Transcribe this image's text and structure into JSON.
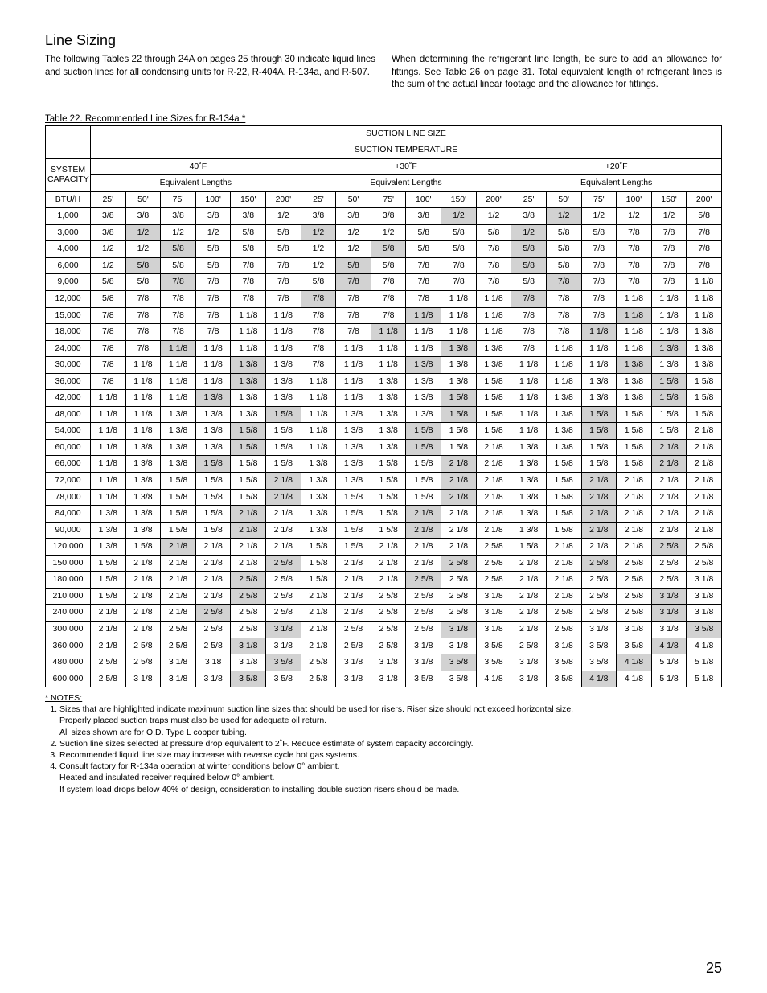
{
  "page": {
    "section_title": "Line Sizing",
    "intro_left": "The following Tables 22 through 24A on pages 25 through 30 indicate liquid lines and suction lines for all condensing units for R-22, R-404A, R-134a, and R-507.",
    "intro_right": "When determining the refrigerant line length, be sure to add an allowance for fittings. See Table 26 on page 31. Total equivalent length of refrigerant lines is the sum of the actual linear footage and the allowance for fittings.",
    "table_caption": "Table 22.  Recommended Line Sizes for R-134a *",
    "headers": {
      "suction_line_size": "SUCTION LINE SIZE",
      "suction_temperature": "SUCTION TEMPERATURE",
      "system_capacity_line1": "SYSTEM",
      "system_capacity_line2": "CAPACITY",
      "btuh": "BTU/H",
      "temps": [
        "+40˚F",
        "+30˚F",
        "+20˚F"
      ],
      "equiv_lengths": "Equivalent Lengths",
      "lengths": [
        "25'",
        "50'",
        "75'",
        "100'",
        "150'",
        "200'"
      ]
    },
    "highlight_color": "#d2d2d2",
    "rows": [
      {
        "cap": "1,000",
        "cells": [
          "3/8",
          "3/8",
          "3/8",
          "3/8",
          "3/8",
          "1/2",
          "3/8",
          "3/8",
          "3/8",
          "3/8",
          "1/2",
          "1/2",
          "3/8",
          "1/2",
          "1/2",
          "1/2",
          "1/2",
          "5/8"
        ],
        "hi": [
          10,
          13
        ]
      },
      {
        "cap": "3,000",
        "cells": [
          "3/8",
          "1/2",
          "1/2",
          "1/2",
          "5/8",
          "5/8",
          "1/2",
          "1/2",
          "1/2",
          "5/8",
          "5/8",
          "5/8",
          "1/2",
          "5/8",
          "5/8",
          "7/8",
          "7/8",
          "7/8"
        ],
        "hi": [
          1,
          6,
          12
        ]
      },
      {
        "cap": "4,000",
        "cells": [
          "1/2",
          "1/2",
          "5/8",
          "5/8",
          "5/8",
          "5/8",
          "1/2",
          "1/2",
          "5/8",
          "5/8",
          "5/8",
          "7/8",
          "5/8",
          "5/8",
          "7/8",
          "7/8",
          "7/8",
          "7/8"
        ],
        "hi": [
          2,
          8,
          12
        ]
      },
      {
        "cap": "6,000",
        "cells": [
          "1/2",
          "5/8",
          "5/8",
          "5/8",
          "7/8",
          "7/8",
          "1/2",
          "5/8",
          "5/8",
          "7/8",
          "7/8",
          "7/8",
          "5/8",
          "5/8",
          "7/8",
          "7/8",
          "7/8",
          "7/8"
        ],
        "hi": [
          1,
          7,
          12
        ]
      },
      {
        "cap": "9,000",
        "cells": [
          "5/8",
          "5/8",
          "7/8",
          "7/8",
          "7/8",
          "7/8",
          "5/8",
          "7/8",
          "7/8",
          "7/8",
          "7/8",
          "7/8",
          "5/8",
          "7/8",
          "7/8",
          "7/8",
          "7/8",
          "1 1/8"
        ],
        "hi": [
          2,
          7,
          13
        ]
      },
      {
        "cap": "12,000",
        "cells": [
          "5/8",
          "7/8",
          "7/8",
          "7/8",
          "7/8",
          "7/8",
          "7/8",
          "7/8",
          "7/8",
          "7/8",
          "1 1/8",
          "1 1/8",
          "7/8",
          "7/8",
          "7/8",
          "1 1/8",
          "1 1/8",
          "1 1/8"
        ],
        "hi": [
          6,
          12
        ]
      },
      {
        "cap": "15,000",
        "cells": [
          "7/8",
          "7/8",
          "7/8",
          "7/8",
          "1 1/8",
          "1 1/8",
          "7/8",
          "7/8",
          "7/8",
          "1 1/8",
          "1 1/8",
          "1 1/8",
          "7/8",
          "7/8",
          "7/8",
          "1 1/8",
          "1 1/8",
          "1 1/8"
        ],
        "hi": [
          9,
          15
        ]
      },
      {
        "cap": "18,000",
        "cells": [
          "7/8",
          "7/8",
          "7/8",
          "7/8",
          "1 1/8",
          "1 1/8",
          "7/8",
          "7/8",
          "1 1/8",
          "1 1/8",
          "1 1/8",
          "1 1/8",
          "7/8",
          "7/8",
          "1 1/8",
          "1 1/8",
          "1 1/8",
          "1 3/8"
        ],
        "hi": [
          8,
          14
        ]
      },
      {
        "cap": "24,000",
        "cells": [
          "7/8",
          "7/8",
          "1 1/8",
          "1 1/8",
          "1 1/8",
          "1 1/8",
          "7/8",
          "1 1/8",
          "1 1/8",
          "1 1/8",
          "1 3/8",
          "1 3/8",
          "7/8",
          "1 1/8",
          "1 1/8",
          "1 1/8",
          "1 3/8",
          "1 3/8"
        ],
        "hi": [
          2,
          10,
          16
        ]
      },
      {
        "cap": "30,000",
        "cells": [
          "7/8",
          "1 1/8",
          "1 1/8",
          "1 1/8",
          "1 3/8",
          "1 3/8",
          "7/8",
          "1 1/8",
          "1 1/8",
          "1 3/8",
          "1 3/8",
          "1 3/8",
          "1 1/8",
          "1 1/8",
          "1 1/8",
          "1 3/8",
          "1 3/8",
          "1 3/8"
        ],
        "hi": [
          4,
          9,
          15
        ]
      },
      {
        "cap": "36,000",
        "cells": [
          "7/8",
          "1 1/8",
          "1 1/8",
          "1 1/8",
          "1 3/8",
          "1 3/8",
          "1 1/8",
          "1 1/8",
          "1 3/8",
          "1 3/8",
          "1 3/8",
          "1 5/8",
          "1 1/8",
          "1 1/8",
          "1 3/8",
          "1 3/8",
          "1 5/8",
          "1 5/8"
        ],
        "hi": [
          4,
          16
        ]
      },
      {
        "cap": "42,000",
        "cells": [
          "1 1/8",
          "1 1/8",
          "1 1/8",
          "1 3/8",
          "1 3/8",
          "1 3/8",
          "1 1/8",
          "1 1/8",
          "1 3/8",
          "1 3/8",
          "1 5/8",
          "1 5/8",
          "1 1/8",
          "1 3/8",
          "1 3/8",
          "1 3/8",
          "1 5/8",
          "1 5/8"
        ],
        "hi": [
          3,
          10,
          16
        ]
      },
      {
        "cap": "48,000",
        "cells": [
          "1 1/8",
          "1 1/8",
          "1 3/8",
          "1 3/8",
          "1 3/8",
          "1 5/8",
          "1 1/8",
          "1 3/8",
          "1 3/8",
          "1 3/8",
          "1 5/8",
          "1 5/8",
          "1 1/8",
          "1 3/8",
          "1 5/8",
          "1 5/8",
          "1 5/8",
          "1 5/8"
        ],
        "hi": [
          5,
          10,
          14
        ]
      },
      {
        "cap": "54,000",
        "cells": [
          "1 1/8",
          "1 1/8",
          "1 3/8",
          "1 3/8",
          "1 5/8",
          "1 5/8",
          "1 1/8",
          "1 3/8",
          "1 3/8",
          "1 5/8",
          "1 5/8",
          "1 5/8",
          "1 1/8",
          "1 3/8",
          "1 5/8",
          "1 5/8",
          "1 5/8",
          "2 1/8"
        ],
        "hi": [
          4,
          9,
          14
        ]
      },
      {
        "cap": "60,000",
        "cells": [
          "1 1/8",
          "1 3/8",
          "1 3/8",
          "1 3/8",
          "1 5/8",
          "1 5/8",
          "1 1/8",
          "1 3/8",
          "1 3/8",
          "1 5/8",
          "1 5/8",
          "2 1/8",
          "1 3/8",
          "1 3/8",
          "1 5/8",
          "1 5/8",
          "2 1/8",
          "2 1/8"
        ],
        "hi": [
          4,
          9,
          16
        ]
      },
      {
        "cap": "66,000",
        "cells": [
          "1 1/8",
          "1 3/8",
          "1 3/8",
          "1 5/8",
          "1 5/8",
          "1 5/8",
          "1 3/8",
          "1 3/8",
          "1 5/8",
          "1 5/8",
          "2 1/8",
          "2 1/8",
          "1 3/8",
          "1 5/8",
          "1 5/8",
          "1 5/8",
          "2 1/8",
          "2 1/8"
        ],
        "hi": [
          3,
          10,
          16
        ]
      },
      {
        "cap": "72,000",
        "cells": [
          "1 1/8",
          "1 3/8",
          "1 5/8",
          "1 5/8",
          "1 5/8",
          "2 1/8",
          "1 3/8",
          "1 3/8",
          "1 5/8",
          "1 5/8",
          "2 1/8",
          "2 1/8",
          "1 3/8",
          "1 5/8",
          "2 1/8",
          "2 1/8",
          "2 1/8",
          "2 1/8"
        ],
        "hi": [
          5,
          10,
          14
        ]
      },
      {
        "cap": "78,000",
        "cells": [
          "1 1/8",
          "1 3/8",
          "1 5/8",
          "1 5/8",
          "1 5/8",
          "2 1/8",
          "1 3/8",
          "1 5/8",
          "1 5/8",
          "1 5/8",
          "2 1/8",
          "2 1/8",
          "1 3/8",
          "1 5/8",
          "2 1/8",
          "2 1/8",
          "2 1/8",
          "2 1/8"
        ],
        "hi": [
          5,
          10,
          14
        ]
      },
      {
        "cap": "84,000",
        "cells": [
          "1 3/8",
          "1 3/8",
          "1 5/8",
          "1 5/8",
          "2 1/8",
          "2 1/8",
          "1 3/8",
          "1 5/8",
          "1 5/8",
          "2 1/8",
          "2 1/8",
          "2 1/8",
          "1 3/8",
          "1 5/8",
          "2 1/8",
          "2 1/8",
          "2 1/8",
          "2 1/8"
        ],
        "hi": [
          4,
          9,
          14
        ]
      },
      {
        "cap": "90,000",
        "cells": [
          "1 3/8",
          "1 3/8",
          "1 5/8",
          "1 5/8",
          "2 1/8",
          "2 1/8",
          "1 3/8",
          "1 5/8",
          "1 5/8",
          "2 1/8",
          "2 1/8",
          "2 1/8",
          "1 3/8",
          "1 5/8",
          "2 1/8",
          "2 1/8",
          "2 1/8",
          "2 1/8"
        ],
        "hi": [
          4,
          9,
          14
        ]
      },
      {
        "cap": "120,000",
        "cells": [
          "1 3/8",
          "1 5/8",
          "2 1/8",
          "2 1/8",
          "2 1/8",
          "2 1/8",
          "1 5/8",
          "1 5/8",
          "2 1/8",
          "2 1/8",
          "2 1/8",
          "2 5/8",
          "1 5/8",
          "2 1/8",
          "2 1/8",
          "2 1/8",
          "2 5/8",
          "2 5/8"
        ],
        "hi": [
          2,
          16
        ]
      },
      {
        "cap": "150,000",
        "cells": [
          "1 5/8",
          "2 1/8",
          "2 1/8",
          "2 1/8",
          "2 1/8",
          "2 5/8",
          "1 5/8",
          "2 1/8",
          "2 1/8",
          "2 1/8",
          "2 5/8",
          "2 5/8",
          "2 1/8",
          "2 1/8",
          "2 5/8",
          "2 5/8",
          "2 5/8",
          "2 5/8"
        ],
        "hi": [
          5,
          10,
          14
        ]
      },
      {
        "cap": "180,000",
        "cells": [
          "1 5/8",
          "2 1/8",
          "2 1/8",
          "2 1/8",
          "2 5/8",
          "2 5/8",
          "1 5/8",
          "2 1/8",
          "2 1/8",
          "2 5/8",
          "2 5/8",
          "2 5/8",
          "2 1/8",
          "2 1/8",
          "2 5/8",
          "2 5/8",
          "2 5/8",
          "3 1/8"
        ],
        "hi": [
          4,
          9
        ]
      },
      {
        "cap": "210,000",
        "cells": [
          "1 5/8",
          "2 1/8",
          "2 1/8",
          "2 1/8",
          "2 5/8",
          "2 5/8",
          "2 1/8",
          "2 1/8",
          "2 5/8",
          "2 5/8",
          "2 5/8",
          "3 1/8",
          "2 1/8",
          "2 1/8",
          "2 5/8",
          "2 5/8",
          "3 1/8",
          "3 1/8"
        ],
        "hi": [
          4,
          16
        ]
      },
      {
        "cap": "240,000",
        "cells": [
          "2 1/8",
          "2 1/8",
          "2 1/8",
          "2 5/8",
          "2 5/8",
          "2 5/8",
          "2 1/8",
          "2 1/8",
          "2 5/8",
          "2 5/8",
          "2 5/8",
          "3 1/8",
          "2 1/8",
          "2 5/8",
          "2 5/8",
          "2 5/8",
          "3 1/8",
          "3 1/8"
        ],
        "hi": [
          3,
          16
        ]
      },
      {
        "cap": "300,000",
        "cells": [
          "2 1/8",
          "2 1/8",
          "2 5/8",
          "2 5/8",
          "2 5/8",
          "3 1/8",
          "2 1/8",
          "2 5/8",
          "2 5/8",
          "2 5/8",
          "3 1/8",
          "3 1/8",
          "2 1/8",
          "2 5/8",
          "3 1/8",
          "3 1/8",
          "3 1/8",
          "3 5/8"
        ],
        "hi": [
          5,
          10,
          17
        ]
      },
      {
        "cap": "360,000",
        "cells": [
          "2 1/8",
          "2 5/8",
          "2 5/8",
          "2 5/8",
          "3 1/8",
          "3 1/8",
          "2 1/8",
          "2 5/8",
          "2 5/8",
          "3 1/8",
          "3 1/8",
          "3 5/8",
          "2 5/8",
          "3 1/8",
          "3 5/8",
          "3 5/8",
          "4 1/8",
          "4 1/8"
        ],
        "hi": [
          4,
          16
        ]
      },
      {
        "cap": "480,000",
        "cells": [
          "2 5/8",
          "2 5/8",
          "3 1/8",
          "3 18",
          "3 1/8",
          "3 5/8",
          "2 5/8",
          "3 1/8",
          "3 1/8",
          "3 1/8",
          "3 5/8",
          "3 5/8",
          "3 1/8",
          "3 5/8",
          "3 5/8",
          "4 1/8",
          "5 1/8",
          "5 1/8"
        ],
        "hi": [
          5,
          10,
          15
        ]
      },
      {
        "cap": "600,000",
        "cells": [
          "2 5/8",
          "3 1/8",
          "3 1/8",
          "3 1/8",
          "3 5/8",
          "3 5/8",
          "2 5/8",
          "3 1/8",
          "3 1/8",
          "3 5/8",
          "3 5/8",
          "4 1/8",
          "3 1/8",
          "3 5/8",
          "4 1/8",
          "4 1/8",
          "5 1/8",
          "5 1/8"
        ],
        "hi": [
          4,
          14
        ]
      }
    ],
    "notes_label": "* NOTES:",
    "notes": [
      "Sizes that are highlighted indicate maximum suction line sizes that should be used for risers.  Riser size should not exceed horizontal size.\nProperly placed suction traps must also be used for adequate oil return.\nAll sizes shown are for O.D. Type L copper tubing.",
      "Suction line sizes selected at pressure drop equivalent to 2˚F.  Reduce estimate of system capacity accordingly.",
      "Recommended liquid line size may increase with reverse cycle hot gas systems.",
      "Consult factory for R-134a operation at winter conditions below 0° ambient.\nHeated and insulated receiver required below 0° ambient.\nIf system load drops below 40% of design, consideration to installing double suction risers should be made."
    ],
    "page_number": "25"
  }
}
